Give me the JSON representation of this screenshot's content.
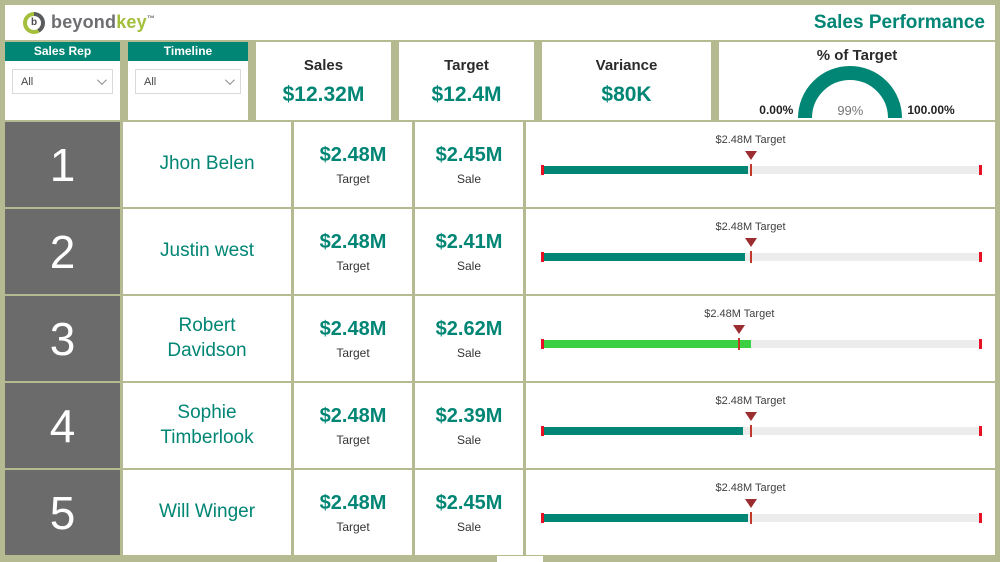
{
  "brand": {
    "icon": "b-circle-icon",
    "name_part1": "beyond",
    "name_part2": "key",
    "trademark": "™"
  },
  "header": {
    "title": "Sales Performance"
  },
  "filters": [
    {
      "label": "Sales Rep",
      "selected": "All"
    },
    {
      "label": "Timeline",
      "selected": "All"
    }
  ],
  "kpis": [
    {
      "label": "Sales",
      "value": "$12.32M"
    },
    {
      "label": "Target",
      "value": "$12.4M"
    },
    {
      "label": "Variance",
      "value": "$80K"
    }
  ],
  "gauge": {
    "title": "% of Target",
    "min_label": "0.00%",
    "max_label": "100.00%",
    "value_label": "99%",
    "value_pct": 99
  },
  "rows": [
    {
      "rank": "1",
      "name": "Jhon Belen",
      "value1": "$2.48M",
      "value1_label": "Target",
      "value2": "$2.45M",
      "value2_label": "Sale",
      "bullet_label": "$2.48M Target",
      "sale_m": 2.45,
      "target_m": 2.48
    },
    {
      "rank": "2",
      "name": "Justin west",
      "value1": "$2.48M",
      "value1_label": "Target",
      "value2": "$2.41M",
      "value2_label": "Sale",
      "bullet_label": "$2.48M Target",
      "sale_m": 2.41,
      "target_m": 2.48
    },
    {
      "rank": "3",
      "name": "Robert Davidson",
      "value1": "$2.48M",
      "value1_label": "Target",
      "value2": "$2.62M",
      "value2_label": "Sale",
      "bullet_label": "$2.48M Target",
      "sale_m": 2.62,
      "target_m": 2.48
    },
    {
      "rank": "4",
      "name": "Sophie Timberlook",
      "value1": "$2.48M",
      "value1_label": "Target",
      "value2": "$2.39M",
      "value2_label": "Sale",
      "bullet_label": "$2.48M Target",
      "sale_m": 2.39,
      "target_m": 2.48
    },
    {
      "rank": "5",
      "name": "Will Winger",
      "value1": "$2.48M",
      "value1_label": "Target",
      "value2": "$2.45M",
      "value2_label": "Sale",
      "bullet_label": "$2.48M Target",
      "sale_m": 2.45,
      "target_m": 2.48
    }
  ],
  "colors": {
    "accent_teal": "#018574",
    "over_target_green": "#3bcf44",
    "target_marker_red": "#9b2d30",
    "end_tick_red": "#e81123",
    "rank_bg_gray": "#6b6b6b",
    "page_bg": "#b6ba90",
    "logo_green": "#a3bf3b",
    "logo_gray": "#6d6e71"
  },
  "chart_data": [
    {
      "type": "gauge",
      "title": "% of Target",
      "value": 99,
      "value_label": "99%",
      "min": 0,
      "max": 100,
      "min_label": "0.00%",
      "max_label": "100.00%"
    },
    {
      "type": "bar",
      "subtype": "bullet",
      "title": "Sale vs Target by Sales Rep ($M)",
      "categories": [
        "Jhon Belen",
        "Justin west",
        "Robert Davidson",
        "Sophie Timberlook",
        "Will Winger"
      ],
      "series": [
        {
          "name": "Sale ($M)",
          "values": [
            2.45,
            2.41,
            2.62,
            2.39,
            2.45
          ]
        },
        {
          "name": "Target ($M)",
          "values": [
            2.48,
            2.48,
            2.48,
            2.48,
            2.48
          ]
        }
      ],
      "annotations": [
        "$2.48M Target marker on every row; bar turns green when sale exceeds target"
      ]
    }
  ]
}
